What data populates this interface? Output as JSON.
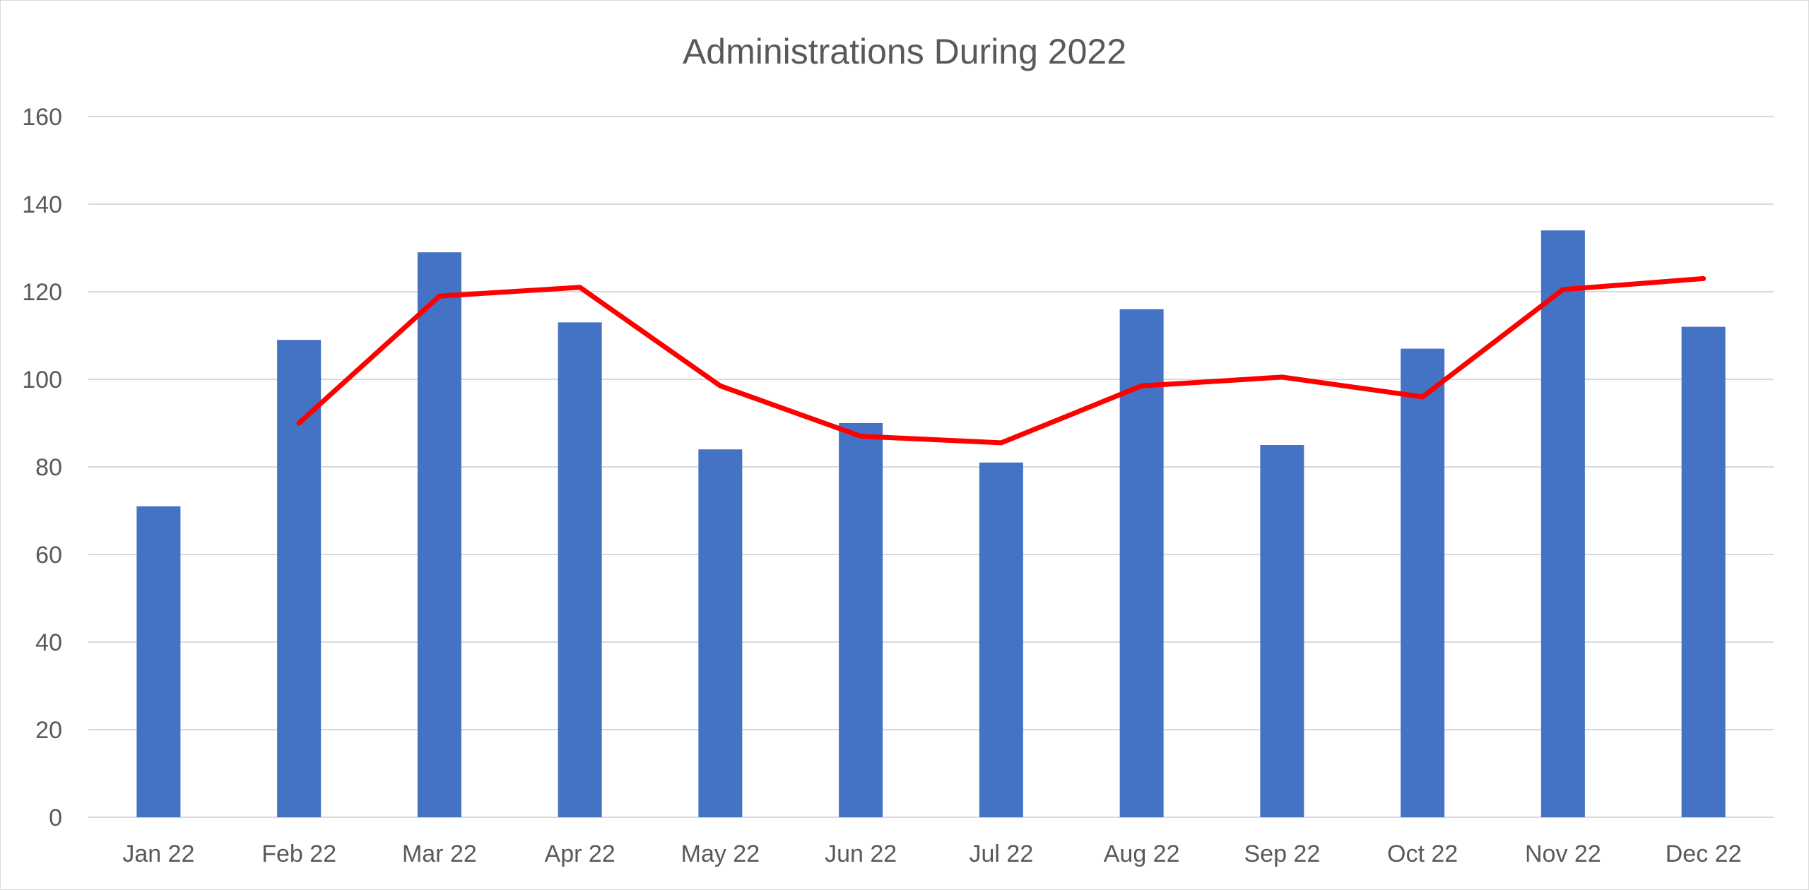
{
  "chart_data": {
    "type": "bar",
    "title": "Administrations During 2022",
    "xlabel": "",
    "ylabel": "",
    "categories": [
      "Jan 22",
      "Feb 22",
      "Mar 22",
      "Apr 22",
      "May 22",
      "Jun 22",
      "Jul 22",
      "Aug 22",
      "Sep 22",
      "Oct 22",
      "Nov 22",
      "Dec 22"
    ],
    "series": [
      {
        "type": "bar",
        "color": "#4472c4",
        "values": [
          71,
          109,
          129,
          113,
          84,
          90,
          81,
          116,
          85,
          107,
          134,
          112
        ]
      },
      {
        "type": "line",
        "color": "#ff0000",
        "values": [
          null,
          90,
          119,
          121,
          98.5,
          87,
          85.5,
          98.5,
          100.5,
          96,
          120.5,
          123
        ]
      }
    ],
    "ylim": [
      0,
      160
    ],
    "yticks": [
      0,
      20,
      40,
      60,
      80,
      100,
      120,
      140,
      160
    ],
    "grid": true,
    "legend": "none"
  }
}
